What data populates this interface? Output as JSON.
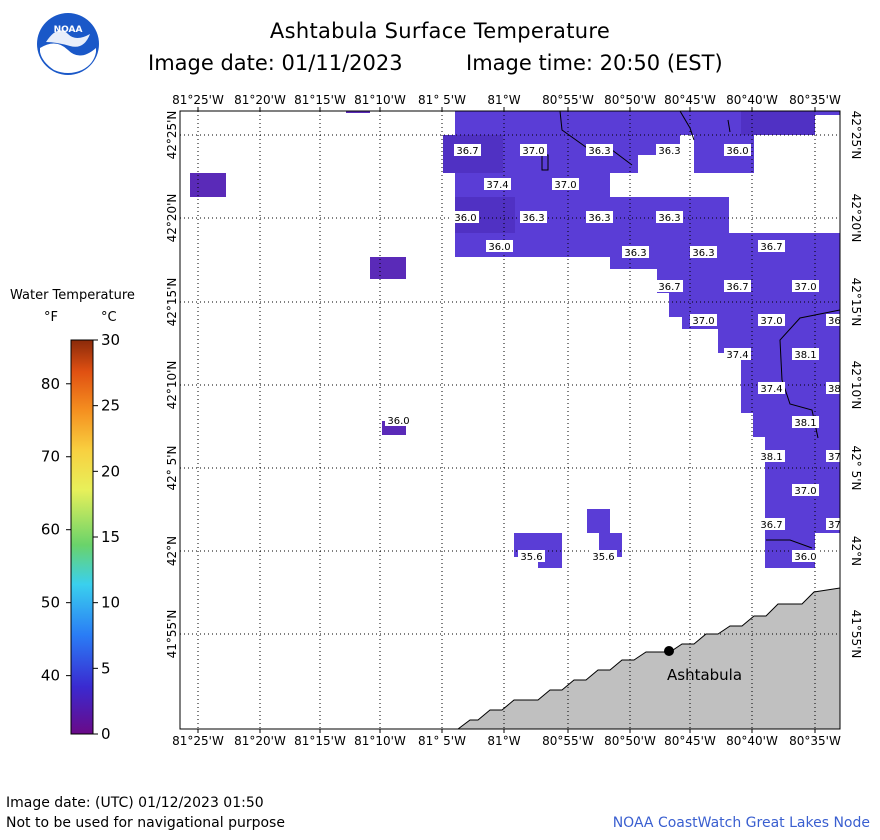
{
  "header": {
    "title": "Ashtabula Surface Temperature",
    "date_label": "Image date: 01/11/2023",
    "time_label": "Image time: 20:50 (EST)",
    "logo_text": "NOAA"
  },
  "legend": {
    "title": "Water Temperature",
    "unit_f": "°F",
    "unit_c": "°C",
    "f_ticks": [
      {
        "label": "80",
        "value": 80
      },
      {
        "label": "70",
        "value": 70
      },
      {
        "label": "60",
        "value": 60
      },
      {
        "label": "50",
        "value": 50
      },
      {
        "label": "40",
        "value": 40
      }
    ],
    "c_ticks": [
      {
        "label": "30",
        "value": 30
      },
      {
        "label": "25",
        "value": 25
      },
      {
        "label": "20",
        "value": 20
      },
      {
        "label": "15",
        "value": 15
      },
      {
        "label": "10",
        "value": 10
      },
      {
        "label": "5",
        "value": 5
      },
      {
        "label": "0",
        "value": 0
      }
    ],
    "colors": [
      "#6a0a88",
      "#4a1cc0",
      "#2a5cf5",
      "#2b9df2",
      "#46d8ec",
      "#6ad36a",
      "#d8ec46",
      "#f5e862",
      "#f8b43a",
      "#f07a18",
      "#c83a12",
      "#8a2a0a"
    ]
  },
  "map": {
    "lon_min": -81.4333,
    "lon_max": -80.55,
    "lat_min": 41.8333,
    "lat_max": 42.4333,
    "lon_labels": [
      "81°25'W",
      "81°20'W",
      "81°15'W",
      "81°10'W",
      "81° 5'W",
      "81°W",
      "80°55'W",
      "80°50'W",
      "80°45'W",
      "80°40'W",
      "80°35'W"
    ],
    "lat_labels": [
      "42°25'N",
      "42°20'N",
      "42°15'N",
      "42°10'N",
      "42° 5'N",
      "42°N",
      "41°55'N"
    ],
    "city": {
      "name": "Ashtabula"
    },
    "temperature_labels": [
      "36.7",
      "37.0",
      "36.3",
      "36.3",
      "36.0",
      "37.4",
      "37.0",
      "36.0",
      "36.3",
      "36.3",
      "36.3",
      "36.0",
      "36.3",
      "36.3",
      "36.7",
      "36.7",
      "36.7",
      "37.0",
      "37.0",
      "37.0",
      "37.4",
      "38.1",
      "37.4",
      "38.1",
      "38.1",
      "37.0",
      "36.7",
      "36.0",
      "35.6",
      "35.6",
      "36.0"
    ],
    "truncated_labels": [
      "36",
      "38",
      "37",
      "37"
    ],
    "water_color": "#5a3dd6",
    "land_color": "#c0c0c0"
  },
  "footer": {
    "utc_label": "Image date: (UTC) 01/12/2023  01:50",
    "disclaimer": "Not to be used for navigational purpose",
    "credit": "NOAA CoastWatch Great Lakes Node"
  }
}
